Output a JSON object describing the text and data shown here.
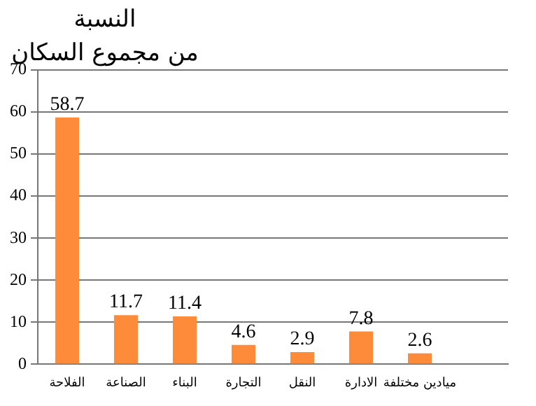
{
  "chart_data": {
    "type": "bar",
    "title": "النسبة",
    "subtitle": "من مجموع السكان",
    "categories": [
      "الفلاحة",
      "الصناعة",
      "البناء",
      "التجارة",
      "النقل",
      "الادارة",
      "ميادين مختلفة",
      null
    ],
    "values": [
      58.7,
      11.7,
      11.4,
      4.6,
      2.9,
      7.8,
      2.6,
      null
    ],
    "color": "#fd8b3a",
    "ylim": [
      0,
      70
    ],
    "yticks": [
      0,
      10,
      20,
      30,
      40,
      50,
      60,
      70
    ],
    "grid": "y",
    "legend": false,
    "data_labels": true
  }
}
